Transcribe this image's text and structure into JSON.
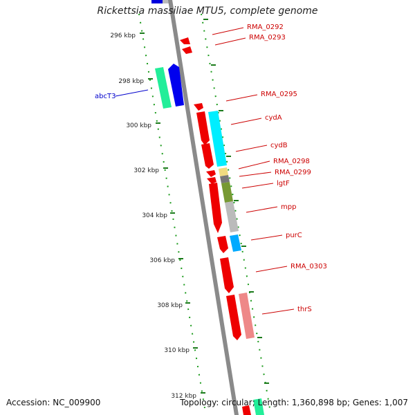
{
  "title": "Rickettsia massiliae MTU5, complete genome",
  "footer": {
    "accession_label": "Accession:",
    "accession": "NC_009900",
    "topology_label": "Topology:",
    "topology": "circular;",
    "length_label": "Length:",
    "length": "1,360,898 bp;",
    "genes_label": "Genes:",
    "genes": "1,007"
  },
  "scale_labels": [
    "296 kbp",
    "298 kbp",
    "300 kbp",
    "302 kbp",
    "304 kbp",
    "306 kbp",
    "308 kbp",
    "310 kbp",
    "312 kbp"
  ],
  "gene_labels_right": [
    "RMA_0292",
    "RMA_0293",
    "RMA_0295",
    "cydA",
    "cydB",
    "RMA_0298",
    "RMA_0299",
    "lgtF",
    "mpp",
    "purC",
    "RMA_0303",
    "thrS"
  ],
  "gene_labels_left": [
    "abcT3"
  ],
  "colors": {
    "forward_cds": "#ff0000",
    "label_red": "#cc0000",
    "label_blue": "#0000cc",
    "backbone": "#8a8a8a",
    "tick_green": "#1a7a1a"
  }
}
